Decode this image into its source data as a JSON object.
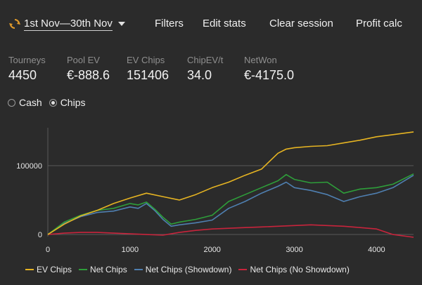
{
  "header": {
    "date_range": "1st Nov—30th Nov",
    "nav": [
      "Filters",
      "Edit stats",
      "Clear session",
      "Profit calc"
    ]
  },
  "stats": [
    {
      "label": "Tourneys",
      "value": "4450"
    },
    {
      "label": "Pool EV",
      "value": "€-888.6"
    },
    {
      "label": "EV Chips",
      "value": "151406"
    },
    {
      "label": "ChipEV/t",
      "value": "34.0"
    },
    {
      "label": "NetWon",
      "value": "€-4175.0"
    }
  ],
  "mode": {
    "options": [
      "Cash",
      "Chips"
    ],
    "selected": "Chips"
  },
  "colors": {
    "background": "#2b2b2b",
    "ev_chips": "#e6b422",
    "net_chips": "#2e9e3a",
    "net_chips_showdown": "#4f7fb0",
    "net_chips_no_showdown": "#c8243c",
    "accent_icon": "#e09a2a"
  },
  "icons": {
    "date_sync": "sync-icon",
    "date_dropdown": "chevron-down-icon"
  },
  "chart_data": {
    "type": "line",
    "xlim": [
      0,
      4450
    ],
    "ylim": [
      -3000,
      155000
    ],
    "xticks": [
      0,
      1000,
      2000,
      3000,
      4000
    ],
    "yticks": [
      0,
      100000
    ],
    "grid": "horizontal",
    "legend_position": "bottom",
    "series": [
      {
        "name": "EV Chips",
        "x": [
          0,
          200,
          400,
          600,
          800,
          1000,
          1200,
          1400,
          1600,
          1800,
          2000,
          2200,
          2400,
          2600,
          2800,
          2900,
          3000,
          3200,
          3400,
          3600,
          3800,
          4000,
          4200,
          4450
        ],
        "values": [
          0,
          15000,
          27000,
          35000,
          45000,
          53000,
          60000,
          55000,
          50000,
          58000,
          68000,
          76000,
          86000,
          95000,
          118000,
          124000,
          126000,
          128000,
          129000,
          133000,
          137000,
          142000,
          145000,
          149000
        ]
      },
      {
        "name": "Net Chips",
        "x": [
          0,
          200,
          400,
          600,
          800,
          1000,
          1100,
          1200,
          1300,
          1400,
          1500,
          1600,
          1800,
          2000,
          2200,
          2400,
          2600,
          2800,
          2900,
          3000,
          3200,
          3400,
          3600,
          3800,
          4000,
          4200,
          4450
        ],
        "values": [
          0,
          18000,
          28000,
          35000,
          38000,
          45000,
          43000,
          47000,
          37000,
          25000,
          15000,
          18000,
          22000,
          28000,
          48000,
          58000,
          68000,
          78000,
          87000,
          80000,
          75000,
          76000,
          60000,
          66000,
          68000,
          73000,
          88000
        ]
      },
      {
        "name": "Net Chips (Showdown)",
        "x": [
          0,
          200,
          400,
          600,
          800,
          1000,
          1100,
          1200,
          1300,
          1400,
          1500,
          1600,
          1800,
          2000,
          2200,
          2400,
          2600,
          2800,
          2900,
          3000,
          3200,
          3400,
          3600,
          3800,
          4000,
          4200,
          4450
        ],
        "values": [
          0,
          16000,
          26000,
          32000,
          34000,
          40000,
          38000,
          45000,
          35000,
          22000,
          12000,
          14000,
          17000,
          21000,
          38000,
          48000,
          60000,
          70000,
          76000,
          68000,
          64000,
          58000,
          48000,
          55000,
          60000,
          68000,
          86000
        ]
      },
      {
        "name": "Net Chips (No Showdown)",
        "x": [
          0,
          200,
          400,
          600,
          800,
          1000,
          1200,
          1400,
          1600,
          1800,
          2000,
          2200,
          2400,
          2600,
          2800,
          3000,
          3200,
          3400,
          3600,
          3800,
          4000,
          4200,
          4450
        ],
        "values": [
          0,
          2000,
          3000,
          3000,
          2000,
          1000,
          0,
          -1000,
          3000,
          6000,
          8000,
          9000,
          10000,
          11000,
          12000,
          13000,
          14000,
          13000,
          12000,
          10000,
          8000,
          0,
          -4000
        ]
      }
    ]
  }
}
